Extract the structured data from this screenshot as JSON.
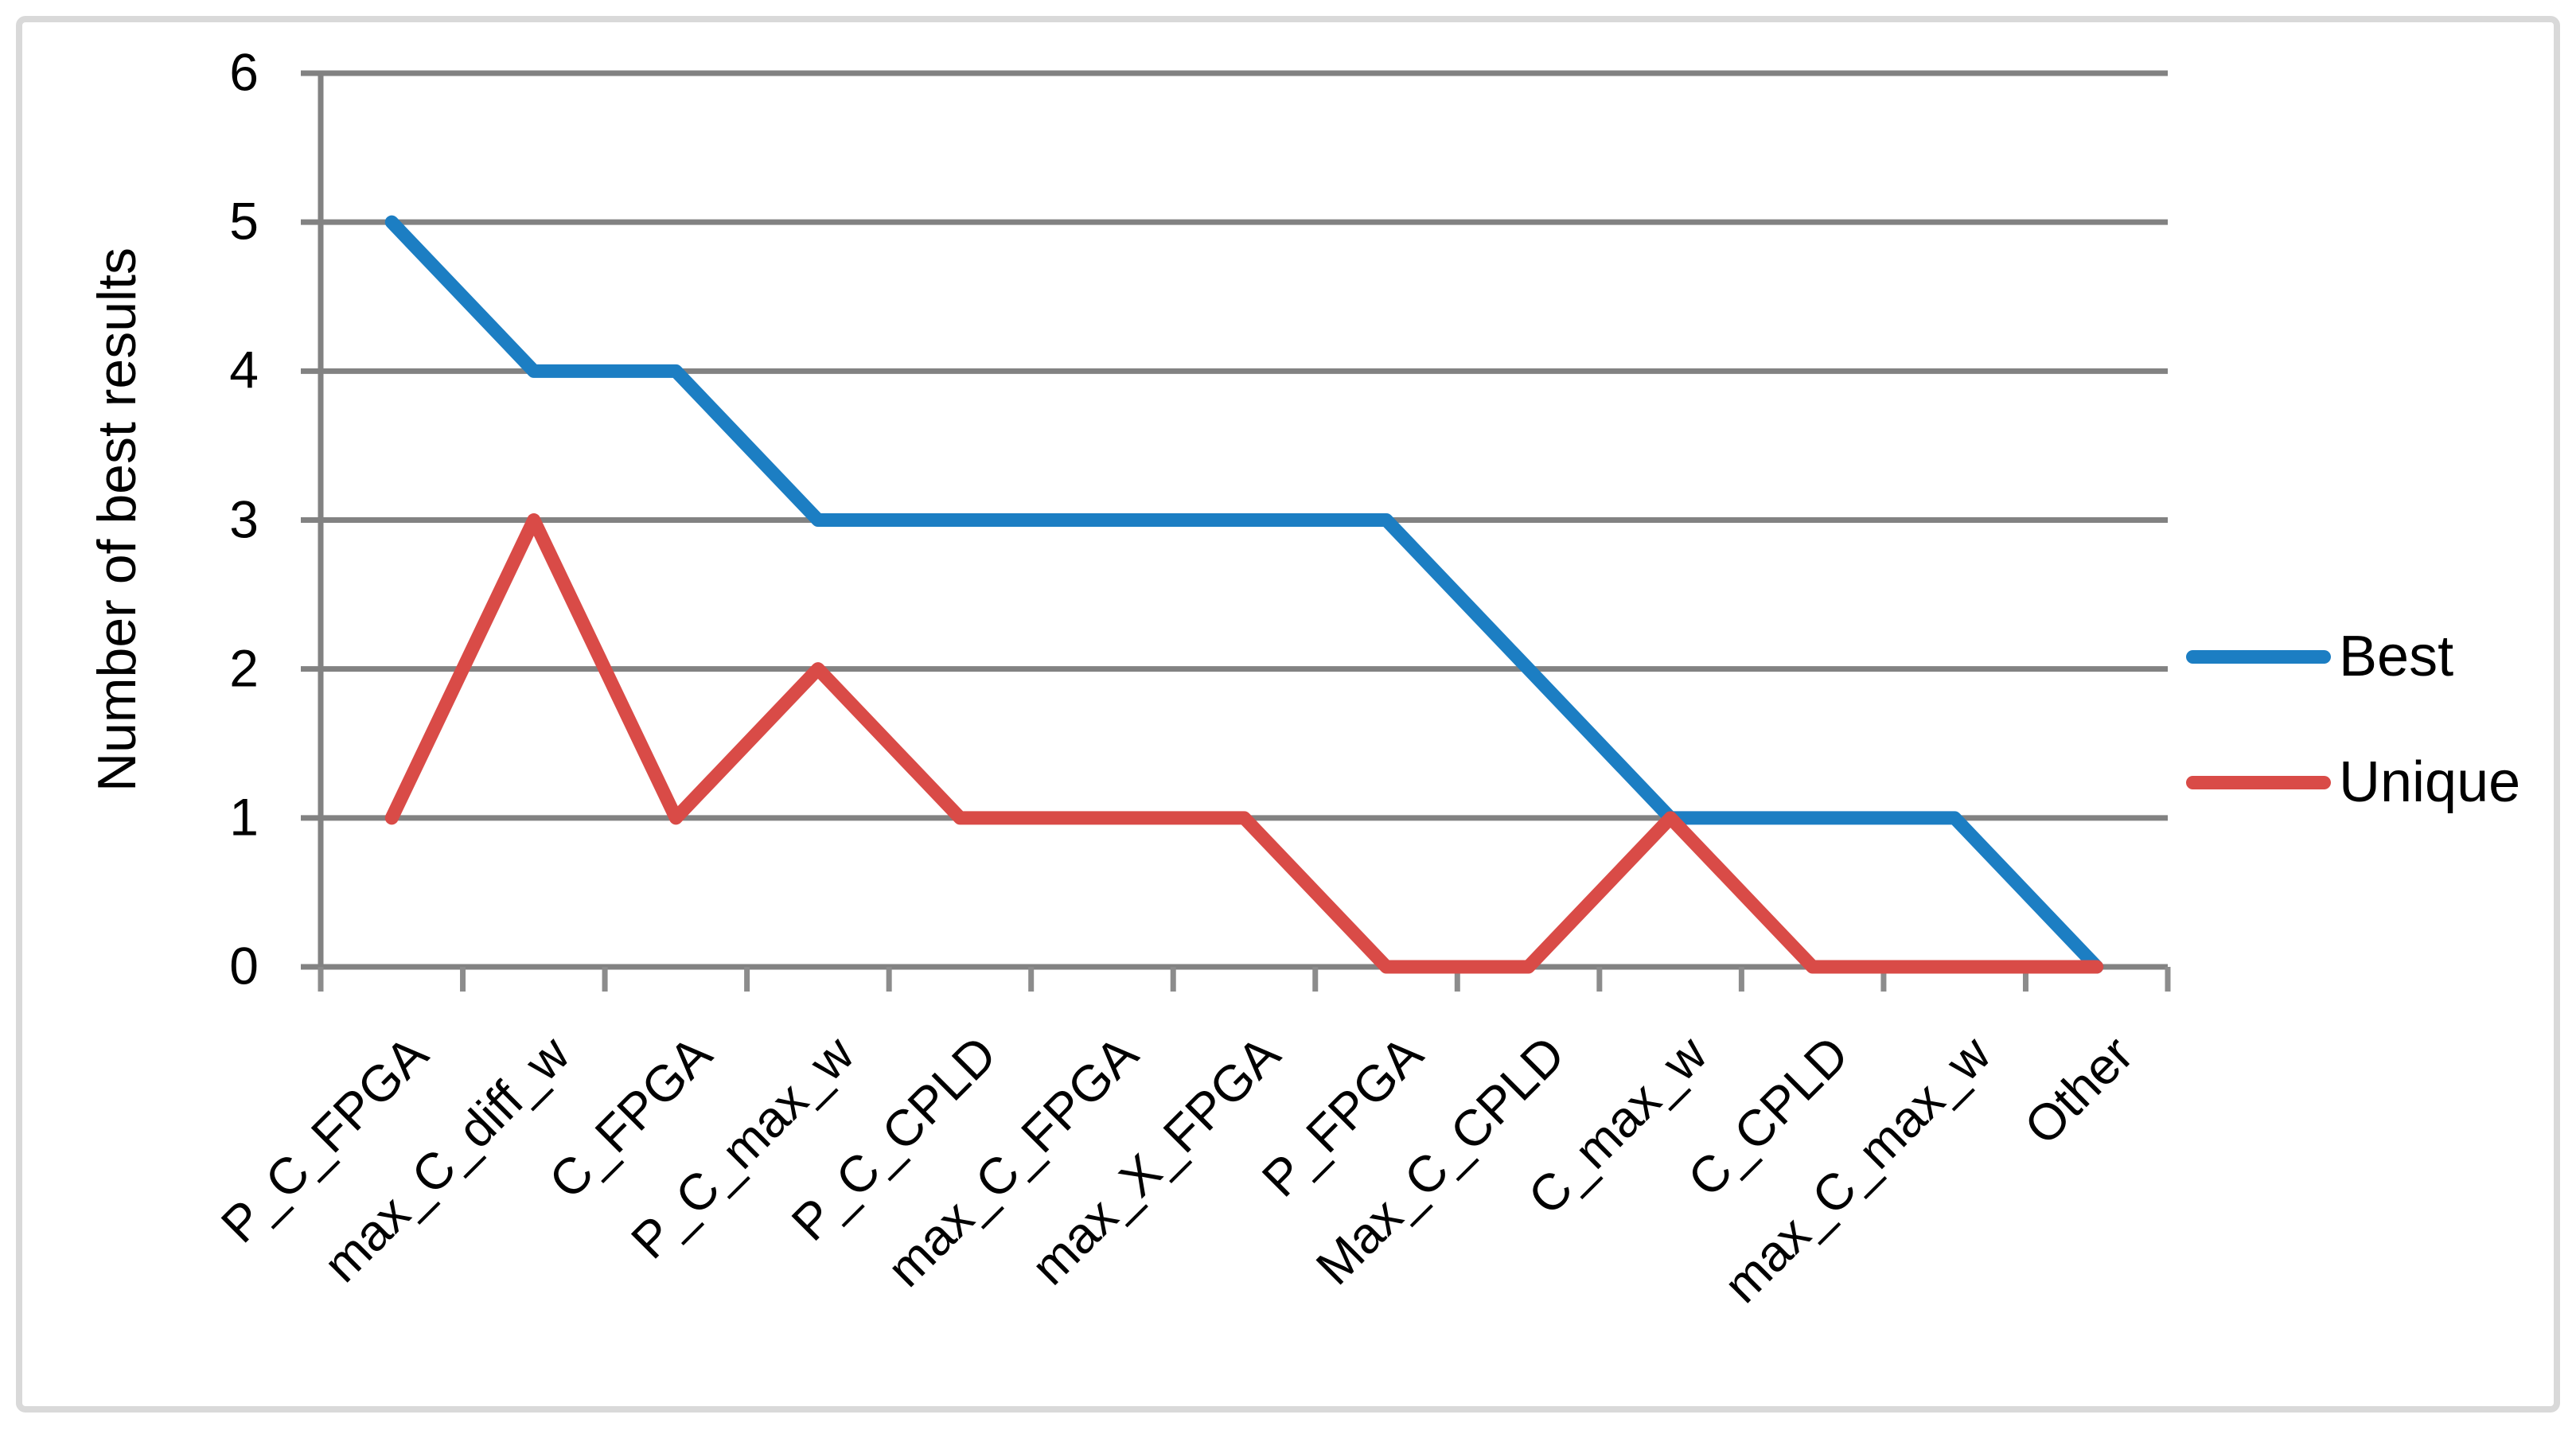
{
  "chart_data": {
    "type": "line",
    "categories": [
      "P_C_FPGA",
      "max_C_diff_w",
      "C_FPGA",
      "P_C_max_w",
      "P_C_CPLD",
      "max_C_FPGA",
      "max_X_FPGA",
      "P_FPGA",
      "Max_C_CPLD",
      "C_max_w",
      "C_CPLD",
      "max_C_max_w",
      "Other"
    ],
    "series": [
      {
        "name": "Best",
        "color": "#1C7EC3",
        "values": [
          5,
          4,
          4,
          3,
          3,
          3,
          3,
          3,
          2,
          1,
          1,
          1,
          0
        ]
      },
      {
        "name": "Unique",
        "color": "#D94B47",
        "values": [
          1,
          3,
          1,
          2,
          1,
          1,
          1,
          0,
          0,
          1,
          0,
          0,
          0
        ]
      }
    ],
    "title": "",
    "xlabel": "",
    "ylabel": "Number of best results",
    "ylim": [
      0,
      6
    ],
    "yticks": [
      0,
      1,
      2,
      3,
      4,
      5,
      6
    ],
    "grid": "horizontal",
    "legend_position": "right"
  },
  "colors": {
    "gridline": "#828282",
    "axis": "#828282",
    "tick": "#8C8C8C",
    "text": "#000000",
    "frame_border": "#D9D9D9",
    "background": "#FFFFFF"
  }
}
